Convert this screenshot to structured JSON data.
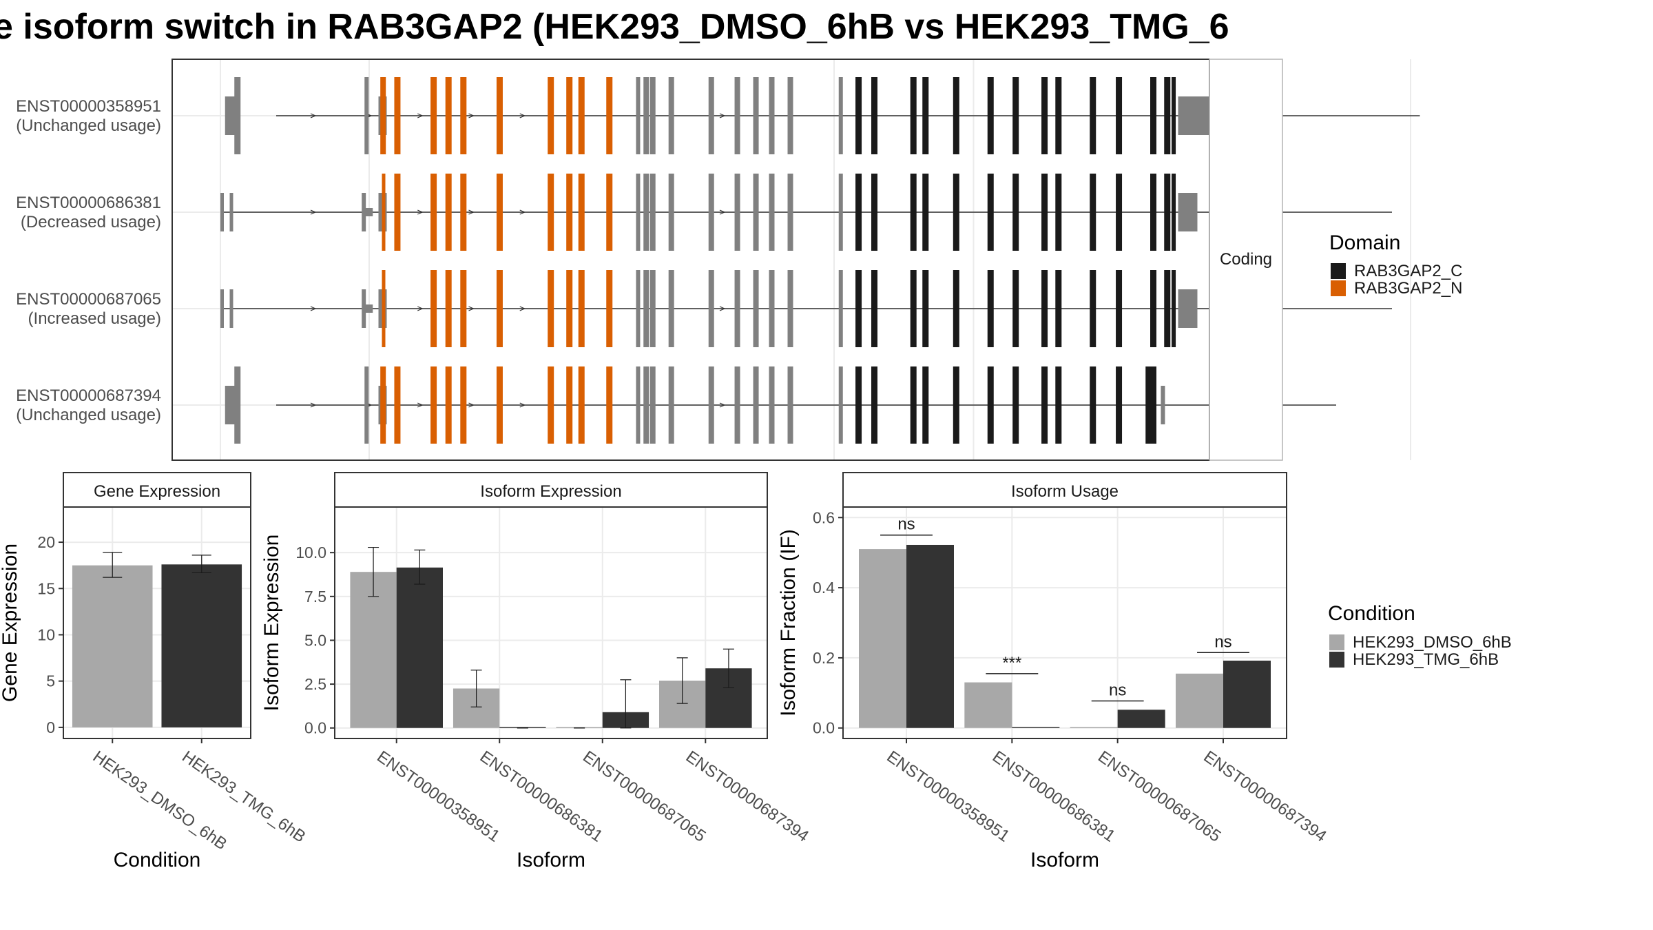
{
  "title": "e isoform switch in RAB3GAP2 (HEK293_DMSO_6hB vs HEK293_TMG_6",
  "colors": {
    "rab3gap2_c": "#1a1a1a",
    "rab3gap2_n": "#d95f02",
    "utr": "#808080",
    "dmso": "#a8a8a8",
    "tmg": "#333333",
    "panel_border": "#333333",
    "strip_fill": "#ffffff",
    "grid": "#ebebeb"
  },
  "chart_data": [
    {
      "type": "gene-structure",
      "facet_label": "Coding",
      "transcripts": [
        {
          "id": "ENST00000358951",
          "usage": "(Unchanged usage)",
          "start": 0.06,
          "end": 1.29,
          "gap_to_n": false,
          "tail_exon": false
        },
        {
          "id": "ENST00000686381",
          "usage": "(Decreased usage)",
          "start": 0.0,
          "end": 1.26,
          "gap_to_n": true,
          "tail_exon": false
        },
        {
          "id": "ENST00000687065",
          "usage": "(Increased usage)",
          "start": 0.0,
          "end": 1.26,
          "gap_to_n": true,
          "tail_exon": false
        },
        {
          "id": "ENST00000687394",
          "usage": "(Unchanged usage)",
          "start": 0.06,
          "end": 1.2,
          "gap_to_n": false,
          "tail_exon": true
        }
      ],
      "legend": {
        "title": "Domain",
        "items": [
          {
            "label": "RAB3GAP2_C",
            "color": "#1a1a1a"
          },
          {
            "label": "RAB3GAP2_N",
            "color": "#d95f02"
          }
        ]
      }
    },
    {
      "type": "bar",
      "strip": "Gene Expression",
      "xlabel": "Condition",
      "ylabel": "Gene Expression",
      "categories": [
        "HEK293_DMSO_6hB",
        "HEK293_TMG_6hB"
      ],
      "values": [
        17.5,
        17.6
      ],
      "error": [
        [
          16.2,
          18.9
        ],
        [
          16.7,
          18.6
        ]
      ],
      "ylim": [
        -1.2,
        23.8
      ],
      "yticks": [
        0,
        5,
        10,
        15,
        20
      ],
      "ytick_labels": [
        "0",
        "5",
        "10",
        "15",
        "20"
      ]
    },
    {
      "type": "bar",
      "strip": "Isoform Expression",
      "xlabel": "Isoform",
      "ylabel": "Isoform Expression",
      "categories": [
        "ENST00000358951",
        "ENST00000686381",
        "ENST00000687065",
        "ENST00000687394"
      ],
      "series": [
        {
          "name": "HEK293_DMSO_6hB",
          "values": [
            8.9,
            2.25,
            0.0,
            2.7
          ],
          "error": [
            [
              7.5,
              10.3
            ],
            [
              1.2,
              3.3
            ],
            [
              0.0,
              0.0
            ],
            [
              1.4,
              4.0
            ]
          ]
        },
        {
          "name": "HEK293_TMG_6hB",
          "values": [
            9.15,
            0.0,
            0.9,
            3.4
          ],
          "error": [
            [
              8.2,
              10.15
            ],
            [
              0.0,
              0.0
            ],
            [
              0.0,
              2.75
            ],
            [
              2.3,
              4.5
            ]
          ]
        }
      ],
      "ylim": [
        -0.6,
        12.6
      ],
      "yticks": [
        0,
        2.5,
        5,
        7.5,
        10
      ],
      "ytick_labels": [
        "0.0",
        "2.5",
        "5.0",
        "7.5",
        "10.0"
      ]
    },
    {
      "type": "bar",
      "strip": "Isoform Usage",
      "xlabel": "Isoform",
      "ylabel": "Isoform Fraction (IF)",
      "categories": [
        "ENST00000358951",
        "ENST00000686381",
        "ENST00000687065",
        "ENST00000687394"
      ],
      "series": [
        {
          "name": "HEK293_DMSO_6hB",
          "values": [
            0.51,
            0.13,
            0.0,
            0.155
          ]
        },
        {
          "name": "HEK293_TMG_6hB",
          "values": [
            0.522,
            0.0,
            0.052,
            0.192
          ]
        }
      ],
      "significance": [
        "ns",
        "***",
        "ns",
        "ns"
      ],
      "sig_y": [
        0.55,
        0.155,
        0.077,
        0.215
      ],
      "ylim": [
        -0.03,
        0.63
      ],
      "yticks": [
        0,
        0.2,
        0.4,
        0.6
      ],
      "ytick_labels": [
        "0.0",
        "0.2",
        "0.4",
        "0.6"
      ]
    }
  ],
  "condition_legend": {
    "title": "Condition",
    "items": [
      {
        "label": "HEK293_DMSO_6hB",
        "color": "#a8a8a8"
      },
      {
        "label": "HEK293_TMG_6hB",
        "color": "#333333"
      }
    ]
  }
}
